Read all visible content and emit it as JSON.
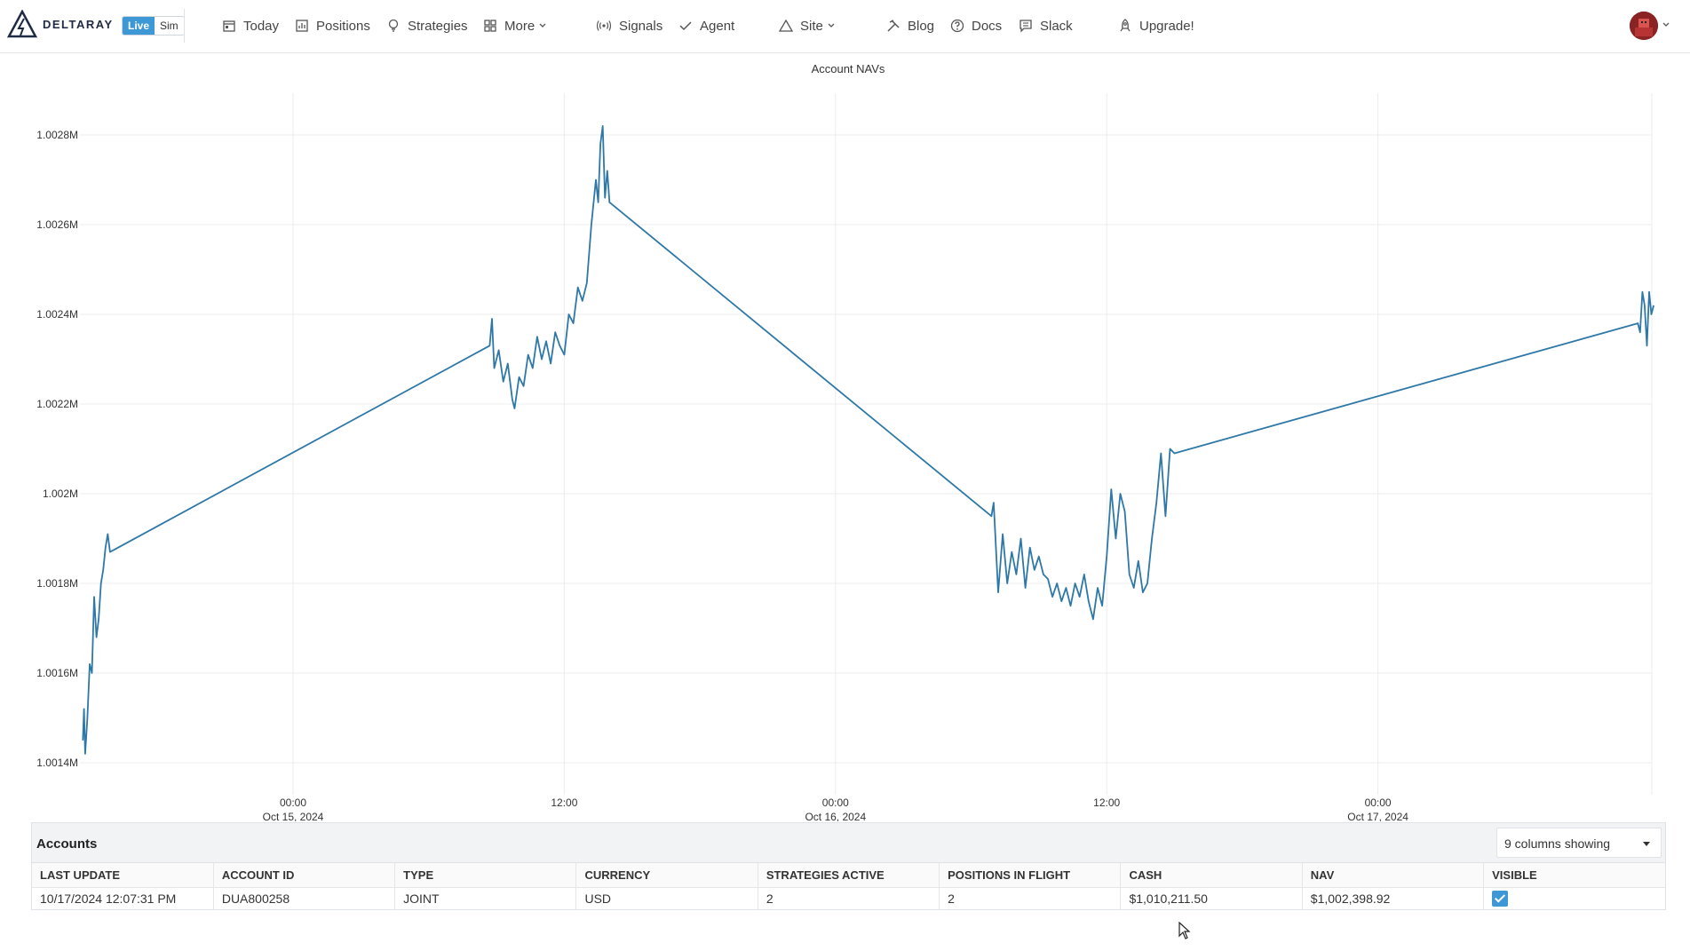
{
  "brand": {
    "name": "DELTARAY",
    "live_label": "Live",
    "sim_label": "Sim"
  },
  "nav": {
    "today": "Today",
    "positions": "Positions",
    "strategies": "Strategies",
    "more": "More",
    "signals": "Signals",
    "agent": "Agent",
    "site": "Site",
    "blog": "Blog",
    "docs": "Docs",
    "slack": "Slack",
    "upgrade": "Upgrade!"
  },
  "colors": {
    "accent": "#3f98d6",
    "line": "#2e78a8"
  },
  "chart_data": {
    "type": "line",
    "title": "Account NAVs",
    "xlabel": "",
    "ylabel": "",
    "ylim": [
      1001400,
      1002850
    ],
    "y_ticks": [
      "1.0014M",
      "1.0016M",
      "1.0018M",
      "1.002M",
      "1.0022M",
      "1.0024M",
      "1.0026M",
      "1.0028M"
    ],
    "x_ticks": [
      {
        "time": "00:00",
        "date": "Oct 15, 2024",
        "hour": 0
      },
      {
        "time": "12:00",
        "date": "",
        "hour": 12
      },
      {
        "time": "00:00",
        "date": "Oct 16, 2024",
        "hour": 24
      },
      {
        "time": "12:00",
        "date": "",
        "hour": 36
      },
      {
        "time": "00:00",
        "date": "Oct 17, 2024",
        "hour": 48
      }
    ],
    "xlim_hours": [
      -9.3,
      60.2
    ],
    "series": [
      {
        "name": "DUA800258",
        "points": [
          [
            -9.3,
            1001450
          ],
          [
            -9.25,
            1001520
          ],
          [
            -9.2,
            1001420
          ],
          [
            -9.1,
            1001500
          ],
          [
            -9.0,
            1001620
          ],
          [
            -8.9,
            1001600
          ],
          [
            -8.8,
            1001770
          ],
          [
            -8.7,
            1001680
          ],
          [
            -8.6,
            1001720
          ],
          [
            -8.5,
            1001800
          ],
          [
            -8.4,
            1001830
          ],
          [
            -8.3,
            1001880
          ],
          [
            -8.2,
            1001910
          ],
          [
            -8.1,
            1001870
          ],
          [
            8.7,
            1002330
          ],
          [
            8.8,
            1002390
          ],
          [
            8.9,
            1002280
          ],
          [
            9.1,
            1002320
          ],
          [
            9.3,
            1002250
          ],
          [
            9.5,
            1002290
          ],
          [
            9.7,
            1002210
          ],
          [
            9.8,
            1002190
          ],
          [
            10.0,
            1002260
          ],
          [
            10.2,
            1002240
          ],
          [
            10.4,
            1002310
          ],
          [
            10.6,
            1002280
          ],
          [
            10.8,
            1002350
          ],
          [
            11.0,
            1002300
          ],
          [
            11.2,
            1002340
          ],
          [
            11.4,
            1002290
          ],
          [
            11.6,
            1002360
          ],
          [
            11.8,
            1002330
          ],
          [
            12.0,
            1002310
          ],
          [
            12.2,
            1002400
          ],
          [
            12.4,
            1002380
          ],
          [
            12.6,
            1002460
          ],
          [
            12.8,
            1002430
          ],
          [
            13.0,
            1002470
          ],
          [
            13.2,
            1002600
          ],
          [
            13.4,
            1002700
          ],
          [
            13.5,
            1002650
          ],
          [
            13.6,
            1002780
          ],
          [
            13.7,
            1002820
          ],
          [
            13.8,
            1002660
          ],
          [
            13.9,
            1002720
          ],
          [
            14.0,
            1002650
          ],
          [
            30.9,
            1001950
          ],
          [
            31.0,
            1001980
          ],
          [
            31.2,
            1001780
          ],
          [
            31.4,
            1001910
          ],
          [
            31.6,
            1001800
          ],
          [
            31.8,
            1001870
          ],
          [
            32.0,
            1001820
          ],
          [
            32.2,
            1001900
          ],
          [
            32.4,
            1001790
          ],
          [
            32.6,
            1001880
          ],
          [
            32.8,
            1001830
          ],
          [
            33.0,
            1001860
          ],
          [
            33.2,
            1001820
          ],
          [
            33.4,
            1001810
          ],
          [
            33.6,
            1001770
          ],
          [
            33.8,
            1001800
          ],
          [
            34.0,
            1001760
          ],
          [
            34.2,
            1001790
          ],
          [
            34.4,
            1001750
          ],
          [
            34.6,
            1001800
          ],
          [
            34.8,
            1001770
          ],
          [
            35.0,
            1001820
          ],
          [
            35.2,
            1001760
          ],
          [
            35.4,
            1001720
          ],
          [
            35.6,
            1001790
          ],
          [
            35.8,
            1001750
          ],
          [
            36.0,
            1001860
          ],
          [
            36.2,
            1002010
          ],
          [
            36.4,
            1001900
          ],
          [
            36.6,
            1002000
          ],
          [
            36.8,
            1001960
          ],
          [
            37.0,
            1001820
          ],
          [
            37.2,
            1001790
          ],
          [
            37.4,
            1001850
          ],
          [
            37.6,
            1001780
          ],
          [
            37.8,
            1001800
          ],
          [
            38.0,
            1001900
          ],
          [
            38.2,
            1001980
          ],
          [
            38.4,
            1002090
          ],
          [
            38.6,
            1001950
          ],
          [
            38.8,
            1002100
          ],
          [
            39.0,
            1002090
          ],
          [
            59.5,
            1002380
          ],
          [
            59.6,
            1002360
          ],
          [
            59.7,
            1002450
          ],
          [
            59.8,
            1002420
          ],
          [
            59.9,
            1002330
          ],
          [
            60.0,
            1002450
          ],
          [
            60.1,
            1002400
          ],
          [
            60.2,
            1002420
          ]
        ]
      }
    ]
  },
  "accounts": {
    "title": "Accounts",
    "columns_label": "9 columns showing",
    "headers": [
      "LAST UPDATE",
      "ACCOUNT ID",
      "TYPE",
      "CURRENCY",
      "STRATEGIES ACTIVE",
      "POSITIONS IN FLIGHT",
      "CASH",
      "NAV",
      "VISIBLE"
    ],
    "rows": [
      {
        "last_update": "10/17/2024 12:07:31 PM",
        "account_id": "DUA800258",
        "type": "JOINT",
        "currency": "USD",
        "strategies_active": "2",
        "positions_in_flight": "2",
        "cash": "$1,010,211.50",
        "nav": "$1,002,398.92",
        "visible": true
      }
    ]
  }
}
